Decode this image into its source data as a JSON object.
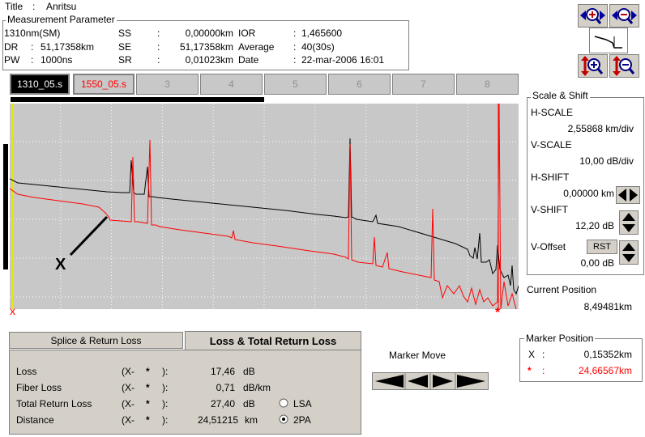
{
  "header": {
    "title_label": "Title",
    "title_colon": ":",
    "title_value": "Anritsu"
  },
  "measurement": {
    "legend": "Measurement Parameter",
    "wavelength": "1310nm(SM)",
    "dr_label": "DR",
    "dr_value": "51,17358km",
    "pw_label": "PW",
    "pw_value": "1000ns",
    "ss_label": "SS",
    "ss_value": "0,00000km",
    "se_label": "SE",
    "se_value": "51,17358km",
    "sr_label": "SR",
    "sr_value": "0,01023km",
    "ior_label": "IOR",
    "ior_value": "1,465600",
    "avg_label": "Average",
    "avg_value": "40(30s)",
    "date_label": "Date",
    "date_value": "22-mar-2006 16:01",
    "colon": ":"
  },
  "tabs": [
    "1310_05.s",
    "1550_05.s",
    "3",
    "4",
    "5",
    "6",
    "7",
    "8"
  ],
  "scale": {
    "legend": "Scale & Shift",
    "hscale_label": "H-SCALE",
    "hscale_value": "2,55868 km/div",
    "vscale_label": "V-SCALE",
    "vscale_value": "10,00 dB/div",
    "hshift_label": "H-SHIFT",
    "hshift_value": "0,00000 km",
    "vshift_label": "V-SHIFT",
    "vshift_value": "12,20 dB",
    "voffset_label": "V-Offset",
    "voffset_value": "0,00 dB",
    "rst_label": "RST"
  },
  "current_position": {
    "label": "Current Position",
    "value": "8,49481km"
  },
  "marker_position": {
    "legend": "Marker Position",
    "x_label": "X",
    "x_colon": ":",
    "x_value": "0,15352km",
    "star_label": "*",
    "star_colon": ":",
    "star_value": "24,66567km"
  },
  "marker_move": {
    "label": "Marker Move"
  },
  "graph": {
    "marker_x_glyph": "x",
    "marker_star_glyph": "*",
    "annotation": "X"
  },
  "loss_tabs": {
    "splice": "Splice & Return Loss",
    "loss_total": "Loss & Total Return Loss"
  },
  "loss": {
    "rows": [
      {
        "label": "Loss",
        "bracket": "(X-",
        "star": "*",
        "close": "):",
        "value": "17,46",
        "unit": "dB"
      },
      {
        "label": "Fiber Loss",
        "bracket": "(X-",
        "star": "*",
        "close": "):",
        "value": "0,71",
        "unit": "dB/km"
      },
      {
        "label": "Total Return Loss",
        "bracket": "(X-",
        "star": "*",
        "close": "):",
        "value": "27,40",
        "unit": "dB"
      },
      {
        "label": "Distance",
        "bracket": "(X-",
        "star": "*",
        "close": "):",
        "value": "24,51215",
        "unit": "km"
      }
    ],
    "radio_lsa": "LSA",
    "radio_2pa": "2PA",
    "selected": "2PA"
  },
  "colors": {
    "trace_black": "#000000",
    "trace_red": "#ff0000",
    "graph_bg": "#c8c8c8",
    "panel_bg": "#d4d0c8",
    "tab_active_bg": "#000000"
  }
}
